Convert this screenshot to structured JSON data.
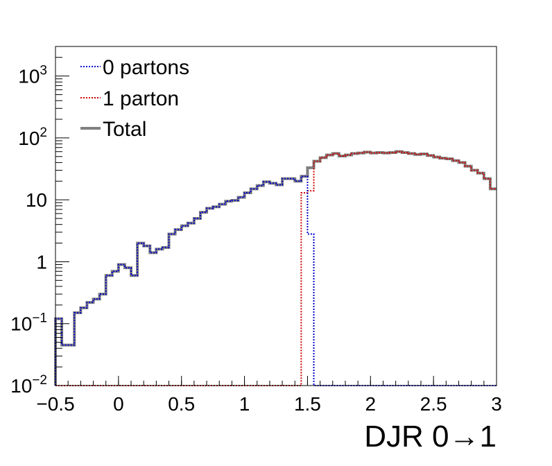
{
  "chart_data": {
    "type": "line",
    "xlabel": "DJR 0→1",
    "ylabel": "",
    "xlim": [
      -0.5,
      3.0
    ],
    "ylim": [
      0.01,
      3000
    ],
    "yscale": "log",
    "grid": false,
    "legend_position": "top-left",
    "x_ticks": [
      "−0.5",
      "0",
      "0.5",
      "1",
      "1.5",
      "2",
      "2.5",
      "3"
    ],
    "x_tick_values": [
      -0.5,
      0,
      0.5,
      1,
      1.5,
      2,
      2.5,
      3
    ],
    "y_ticks": [
      {
        "value": 0.01,
        "base": "10",
        "exp": "−2"
      },
      {
        "value": 0.1,
        "base": "10",
        "exp": "−1"
      },
      {
        "value": 1,
        "base": "1",
        "exp": ""
      },
      {
        "value": 10,
        "base": "10",
        "exp": ""
      },
      {
        "value": 100,
        "base": "10",
        "exp": "2"
      },
      {
        "value": 1000,
        "base": "10",
        "exp": "3"
      }
    ],
    "bin_width": 0.05,
    "x_start": -0.5,
    "series": [
      {
        "name": "0 partons",
        "color": "#0000cc",
        "style": "dotted",
        "values": [
          0.12,
          0.045,
          0.045,
          0.15,
          0.18,
          0.22,
          0.25,
          0.3,
          0.6,
          0.7,
          0.9,
          0.8,
          0.6,
          2.0,
          1.8,
          1.4,
          1.6,
          1.7,
          2.8,
          3.3,
          3.8,
          4.2,
          5.0,
          6.3,
          7.3,
          7.7,
          8.5,
          9.5,
          9.8,
          11.0,
          13.0,
          15.0,
          17.0,
          19.5,
          18.5,
          17.5,
          22.0,
          22.0,
          20.0,
          24.0,
          2.8,
          0.01,
          0.01,
          0.01,
          0.01,
          0.01,
          0.01,
          0.01,
          0.01,
          0.01,
          0.01,
          0.01,
          0.01,
          0.01,
          0.01,
          0.01,
          0.01,
          0.01,
          0.01,
          0.01,
          0.01,
          0.01,
          0.01,
          0.01,
          0.01,
          0.01,
          0.01,
          0.01,
          0.01,
          0.01
        ]
      },
      {
        "name": "1 parton",
        "color": "#cc0000",
        "style": "dotted",
        "values": [
          0.01,
          0.01,
          0.01,
          0.01,
          0.01,
          0.01,
          0.01,
          0.01,
          0.01,
          0.01,
          0.01,
          0.01,
          0.01,
          0.01,
          0.01,
          0.01,
          0.01,
          0.01,
          0.01,
          0.01,
          0.01,
          0.01,
          0.01,
          0.01,
          0.01,
          0.01,
          0.01,
          0.01,
          0.01,
          0.01,
          0.01,
          0.01,
          0.01,
          0.01,
          0.01,
          0.01,
          0.01,
          0.01,
          0.01,
          13.0,
          14.0,
          42.0,
          48.0,
          53.0,
          56.0,
          51.0,
          53.0,
          56.0,
          57.0,
          59.0,
          57.0,
          58.0,
          57.0,
          58.0,
          60.0,
          58.0,
          56.0,
          54.0,
          55.0,
          52.0,
          49.0,
          47.0,
          46.0,
          43.0,
          40.0,
          35.0,
          30.0,
          27.0,
          22.0,
          15.0
        ]
      },
      {
        "name": "Total",
        "color": "#808080",
        "style": "solid",
        "values": [
          0.12,
          0.045,
          0.045,
          0.15,
          0.18,
          0.22,
          0.25,
          0.3,
          0.6,
          0.7,
          0.9,
          0.8,
          0.6,
          2.0,
          1.8,
          1.4,
          1.6,
          1.7,
          2.8,
          3.3,
          3.8,
          4.2,
          5.0,
          6.3,
          7.3,
          7.7,
          8.5,
          9.5,
          9.8,
          11.0,
          13.0,
          15.0,
          17.0,
          19.5,
          18.5,
          17.5,
          22.0,
          22.0,
          20.0,
          24.0,
          33.0,
          42.0,
          48.0,
          53.0,
          56.0,
          51.0,
          53.0,
          56.0,
          57.0,
          59.0,
          57.0,
          58.0,
          57.0,
          58.0,
          60.0,
          58.0,
          56.0,
          54.0,
          55.0,
          52.0,
          49.0,
          47.0,
          46.0,
          43.0,
          40.0,
          35.0,
          30.0,
          27.0,
          22.0,
          15.0
        ]
      }
    ]
  }
}
